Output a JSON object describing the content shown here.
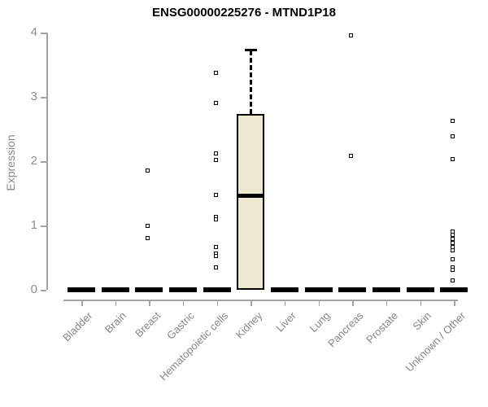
{
  "header": {
    "title": "ENSG00000225276 - MTND1P18"
  },
  "colors": {
    "box_fill": "#EDE8D0",
    "box_stroke": "#000000",
    "axis": "#A3A3A3",
    "tick_label": "#8F8F8F",
    "category_label": "#868686",
    "title": "#000000",
    "background": "#FFFFFF"
  },
  "chart_data": {
    "type": "boxplot",
    "title": "ENSG00000225276 - MTND1P18",
    "xlabel": "",
    "ylabel": "Expression",
    "ylim": [
      0,
      4
    ],
    "yticks": [
      0,
      1,
      2,
      3,
      4
    ],
    "grid": false,
    "legend": "none",
    "categories": [
      "Bladder",
      "Brain",
      "Breast",
      "Gastric",
      "Hematopoietic cells",
      "Kidney",
      "Liver",
      "Lung",
      "Pancreas",
      "Prostate",
      "Skin",
      "Unknown / Other"
    ],
    "boxes": [
      {
        "category": "Bladder",
        "q1": 0,
        "median": 0,
        "q3": 0,
        "whisker_low": 0,
        "whisker_high": 0,
        "outliers": []
      },
      {
        "category": "Brain",
        "q1": 0,
        "median": 0,
        "q3": 0,
        "whisker_low": 0,
        "whisker_high": 0,
        "outliers": []
      },
      {
        "category": "Breast",
        "q1": 0,
        "median": 0,
        "q3": 0,
        "whisker_low": 0,
        "whisker_high": 0,
        "outliers": [
          1.86,
          1.0,
          0.81
        ]
      },
      {
        "category": "Gastric",
        "q1": 0,
        "median": 0,
        "q3": 0,
        "whisker_low": 0,
        "whisker_high": 0,
        "outliers": []
      },
      {
        "category": "Hematopoietic cells",
        "q1": 0,
        "median": 0,
        "q3": 0,
        "whisker_low": 0,
        "whisker_high": 0,
        "outliers": [
          3.37,
          2.91,
          2.12,
          2.02,
          1.47,
          1.13,
          1.09,
          0.67,
          0.56,
          0.52,
          0.35
        ]
      },
      {
        "category": "Kidney",
        "q1": 0,
        "median": 1.46,
        "q3": 2.73,
        "whisker_low": 0,
        "whisker_high": 3.73,
        "outliers": []
      },
      {
        "category": "Liver",
        "q1": 0,
        "median": 0,
        "q3": 0,
        "whisker_low": 0,
        "whisker_high": 0,
        "outliers": []
      },
      {
        "category": "Lung",
        "q1": 0,
        "median": 0,
        "q3": 0,
        "whisker_low": 0,
        "whisker_high": 0,
        "outliers": []
      },
      {
        "category": "Pancreas",
        "q1": 0,
        "median": 0,
        "q3": 0,
        "whisker_low": 0,
        "whisker_high": 0,
        "outliers": [
          3.95,
          2.08
        ]
      },
      {
        "category": "Prostate",
        "q1": 0,
        "median": 0,
        "q3": 0,
        "whisker_low": 0,
        "whisker_high": 0,
        "outliers": []
      },
      {
        "category": "Skin",
        "q1": 0,
        "median": 0,
        "q3": 0,
        "whisker_low": 0,
        "whisker_high": 0,
        "outliers": []
      },
      {
        "category": "Unknown / Other",
        "q1": 0,
        "median": 0,
        "q3": 0,
        "whisker_low": 0,
        "whisker_high": 0,
        "outliers": [
          2.63,
          2.38,
          2.03,
          0.91,
          0.85,
          0.79,
          0.73,
          0.67,
          0.61,
          0.48,
          0.35,
          0.31,
          0.15
        ]
      }
    ]
  }
}
